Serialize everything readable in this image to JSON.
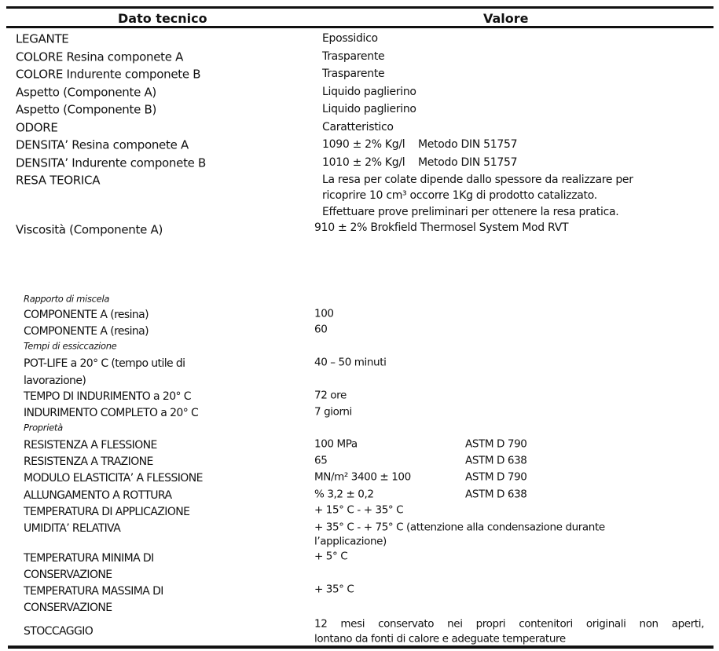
{
  "header": {
    "col1": "Dato tecnico",
    "col2": "Valore"
  },
  "general": [
    {
      "label": "LEGANTE",
      "value": "Epossidico"
    },
    {
      "label": "COLORE Resina componete A",
      "value": "Trasparente"
    },
    {
      "label": "COLORE Indurente componete B",
      "value": "Trasparente"
    },
    {
      "label": "Aspetto (Componente A)",
      "value": "Liquido paglierino"
    },
    {
      "label": "Aspetto (Componente B)",
      "value": "Liquido paglierino"
    },
    {
      "label": "ODORE",
      "value": "Caratteristico"
    },
    {
      "label": "DENSITA’ Resina componete A",
      "value": "1090 ± 2% Kg/l    Metodo DIN 51757"
    },
    {
      "label": "DENSITA’ Indurente componete B",
      "value": "1010 ± 2% Kg/l    Metodo DIN 51757"
    },
    {
      "label": "RESA TEORICA",
      "value_lines": [
        "La resa per colate dipende dallo spessore da realizzare per",
        "ricoprire 10 cm³ occorre 1Kg di prodotto catalizzato.",
        "Effettuare prove preliminari per ottenere la resa pratica."
      ]
    },
    {
      "label": "Viscosità (Componente A)",
      "value": "910 ± 2% Brokfield Thermosel System Mod RVT"
    }
  ],
  "mix": {
    "section": "Rapporto di miscela",
    "rows": [
      {
        "label": "COMPONENTE A (resina)",
        "value": "100"
      },
      {
        "label": "COMPONENTE A (resina)",
        "value": "60"
      }
    ]
  },
  "drying": {
    "section": "Tempi di essiccazione",
    "rows": [
      {
        "label_lines": [
          "POT-LIFE a 20° C (tempo utile di",
          "lavorazione)"
        ],
        "value": "40 – 50 minuti"
      },
      {
        "label": "TEMPO DI INDURIMENTO a 20° C",
        "value": "72 ore"
      },
      {
        "label": "INDURIMENTO COMPLETO a 20° C",
        "value": "7 giorni"
      }
    ]
  },
  "properties": {
    "section": "Proprietà",
    "rows": [
      {
        "label": "RESISTENZA A FLESSIONE",
        "value": "100 MPa",
        "method": "ASTM D 790"
      },
      {
        "label": "RESISTENZA A TRAZIONE",
        "value": "65",
        "method": "ASTM D 638"
      },
      {
        "label": "MODULO ELASTICITA’ A FLESSIONE",
        "value": "MN/m² 3400 ± 100",
        "method": "ASTM D 790"
      },
      {
        "label": "ALLUNGAMENTO A ROTTURA",
        "value": "% 3,2 ± 0,2",
        "method": "ASTM D 638"
      },
      {
        "label": "TEMPERATURA DI APPLICAZIONE",
        "value": "+ 15° C - + 35° C"
      },
      {
        "label": "UMIDITA’ RELATIVA",
        "value_lines": [
          "+ 35° C - + 75° C (attenzione alla condensazione durante",
          "l’applicazione)"
        ]
      },
      {
        "label_lines": [
          "TEMPERATURA MINIMA DI",
          "CONSERVAZIONE"
        ],
        "value": "+ 5° C"
      },
      {
        "label_lines": [
          "TEMPERATURA MASSIMA DI",
          "CONSERVAZIONE"
        ],
        "value": "+ 35° C"
      },
      {
        "label": "STOCCAGGIO",
        "value_lines": [
          "12 mesi conservato nei propri contenitori originali non aperti,",
          "lontano da fonti di calore e adeguate temperature"
        ]
      }
    ]
  }
}
